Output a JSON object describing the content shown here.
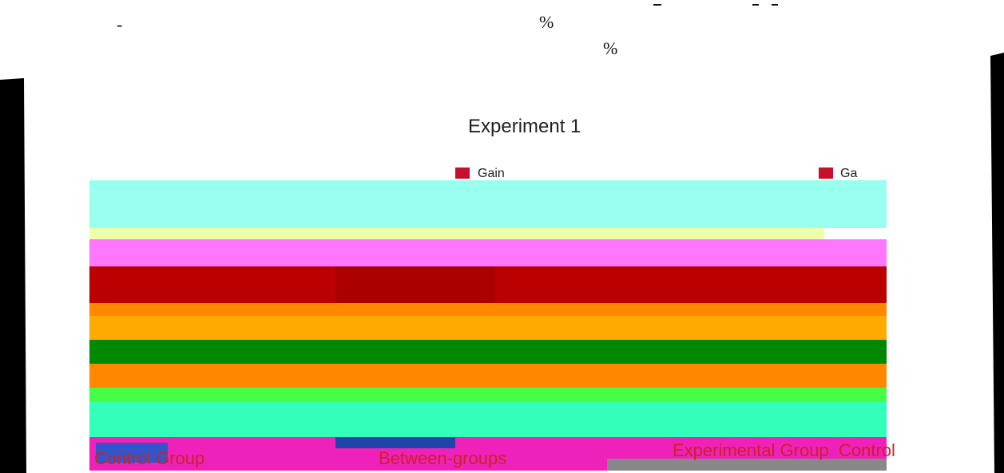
{
  "header": {
    "marks": [
      "-",
      "%",
      "%"
    ]
  },
  "figure": {
    "title": "Experiment 1",
    "legend": [
      "Gain",
      "Ga"
    ],
    "labels": [
      "Control Group",
      "Between-groups",
      "Experimental Group",
      "Control"
    ]
  }
}
